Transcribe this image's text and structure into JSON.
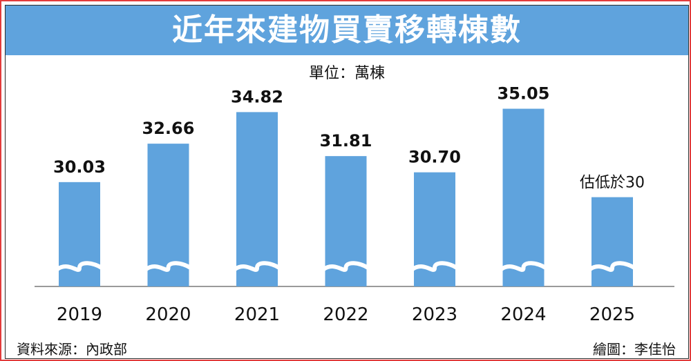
{
  "title": "近年來建物買賣移轉棟數",
  "unit_label": "單位：萬棟",
  "source": "資料來源：內政部",
  "credit": "繪圖：李佳怡",
  "colors": {
    "bar": "#5fa3dd",
    "title_bg": "#5fa3dd",
    "border": "#e23b3b",
    "axis": "#9a9a9a"
  },
  "chart_data": {
    "type": "bar",
    "title": "近年來建物買賣移轉棟數",
    "ylabel": "單位：萬棟",
    "xlabel": "",
    "categories": [
      "2019",
      "2020",
      "2021",
      "2022",
      "2023",
      "2024",
      "2025"
    ],
    "values": [
      30.03,
      32.66,
      34.82,
      31.81,
      30.7,
      35.05,
      29.0
    ],
    "value_labels": [
      "30.03",
      "32.66",
      "34.82",
      "31.81",
      "30.70",
      "35.05",
      "估低於30"
    ],
    "value_estimated": [
      false,
      false,
      false,
      false,
      false,
      false,
      true
    ],
    "axis_break": true,
    "ylim": [
      27,
      35.5
    ],
    "grid": false,
    "legend": "none"
  }
}
